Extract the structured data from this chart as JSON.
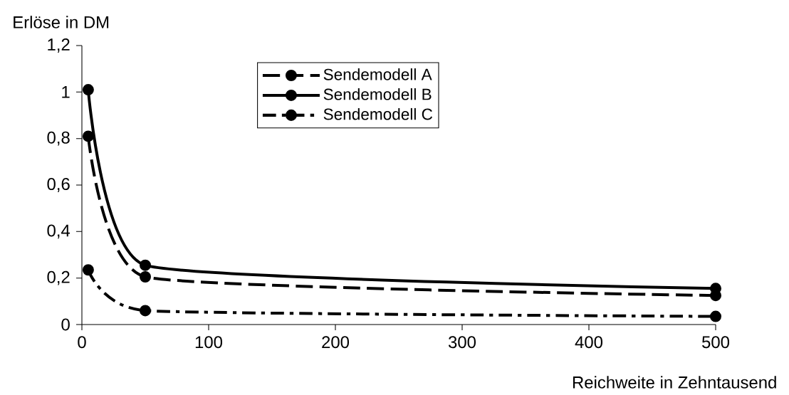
{
  "chart_data": {
    "type": "line",
    "xlabel": "Reichweite in Zehntausend",
    "ylabel": "Erlöse in DM",
    "x": [
      5,
      50,
      500
    ],
    "series": [
      {
        "name": "Sendemodell A",
        "color": "#000000",
        "line_style": "dashed",
        "values": [
          0.81,
          0.205,
          0.125
        ]
      },
      {
        "name": "Sendemodell B",
        "color": "#000000",
        "line_style": "solid",
        "values": [
          1.01,
          0.255,
          0.155
        ]
      },
      {
        "name": "Sendemodell C",
        "color": "#000000",
        "line_style": "dashdot",
        "values": [
          0.235,
          0.06,
          0.035
        ]
      }
    ],
    "xlim": [
      0,
      500
    ],
    "xticks": [
      0,
      100,
      200,
      300,
      400,
      500
    ],
    "ylim": [
      0,
      1.2
    ],
    "yticks": [
      0,
      {
        "value": 0.2,
        "label": "0,2"
      },
      {
        "value": 0.4,
        "label": "0,4"
      },
      {
        "value": 0.6,
        "label": "0,6"
      },
      {
        "value": 0.8,
        "label": "0,8"
      },
      1,
      {
        "value": 1.2,
        "label": "1,2"
      }
    ],
    "marker": "circle",
    "legend": "top",
    "grid": false
  }
}
